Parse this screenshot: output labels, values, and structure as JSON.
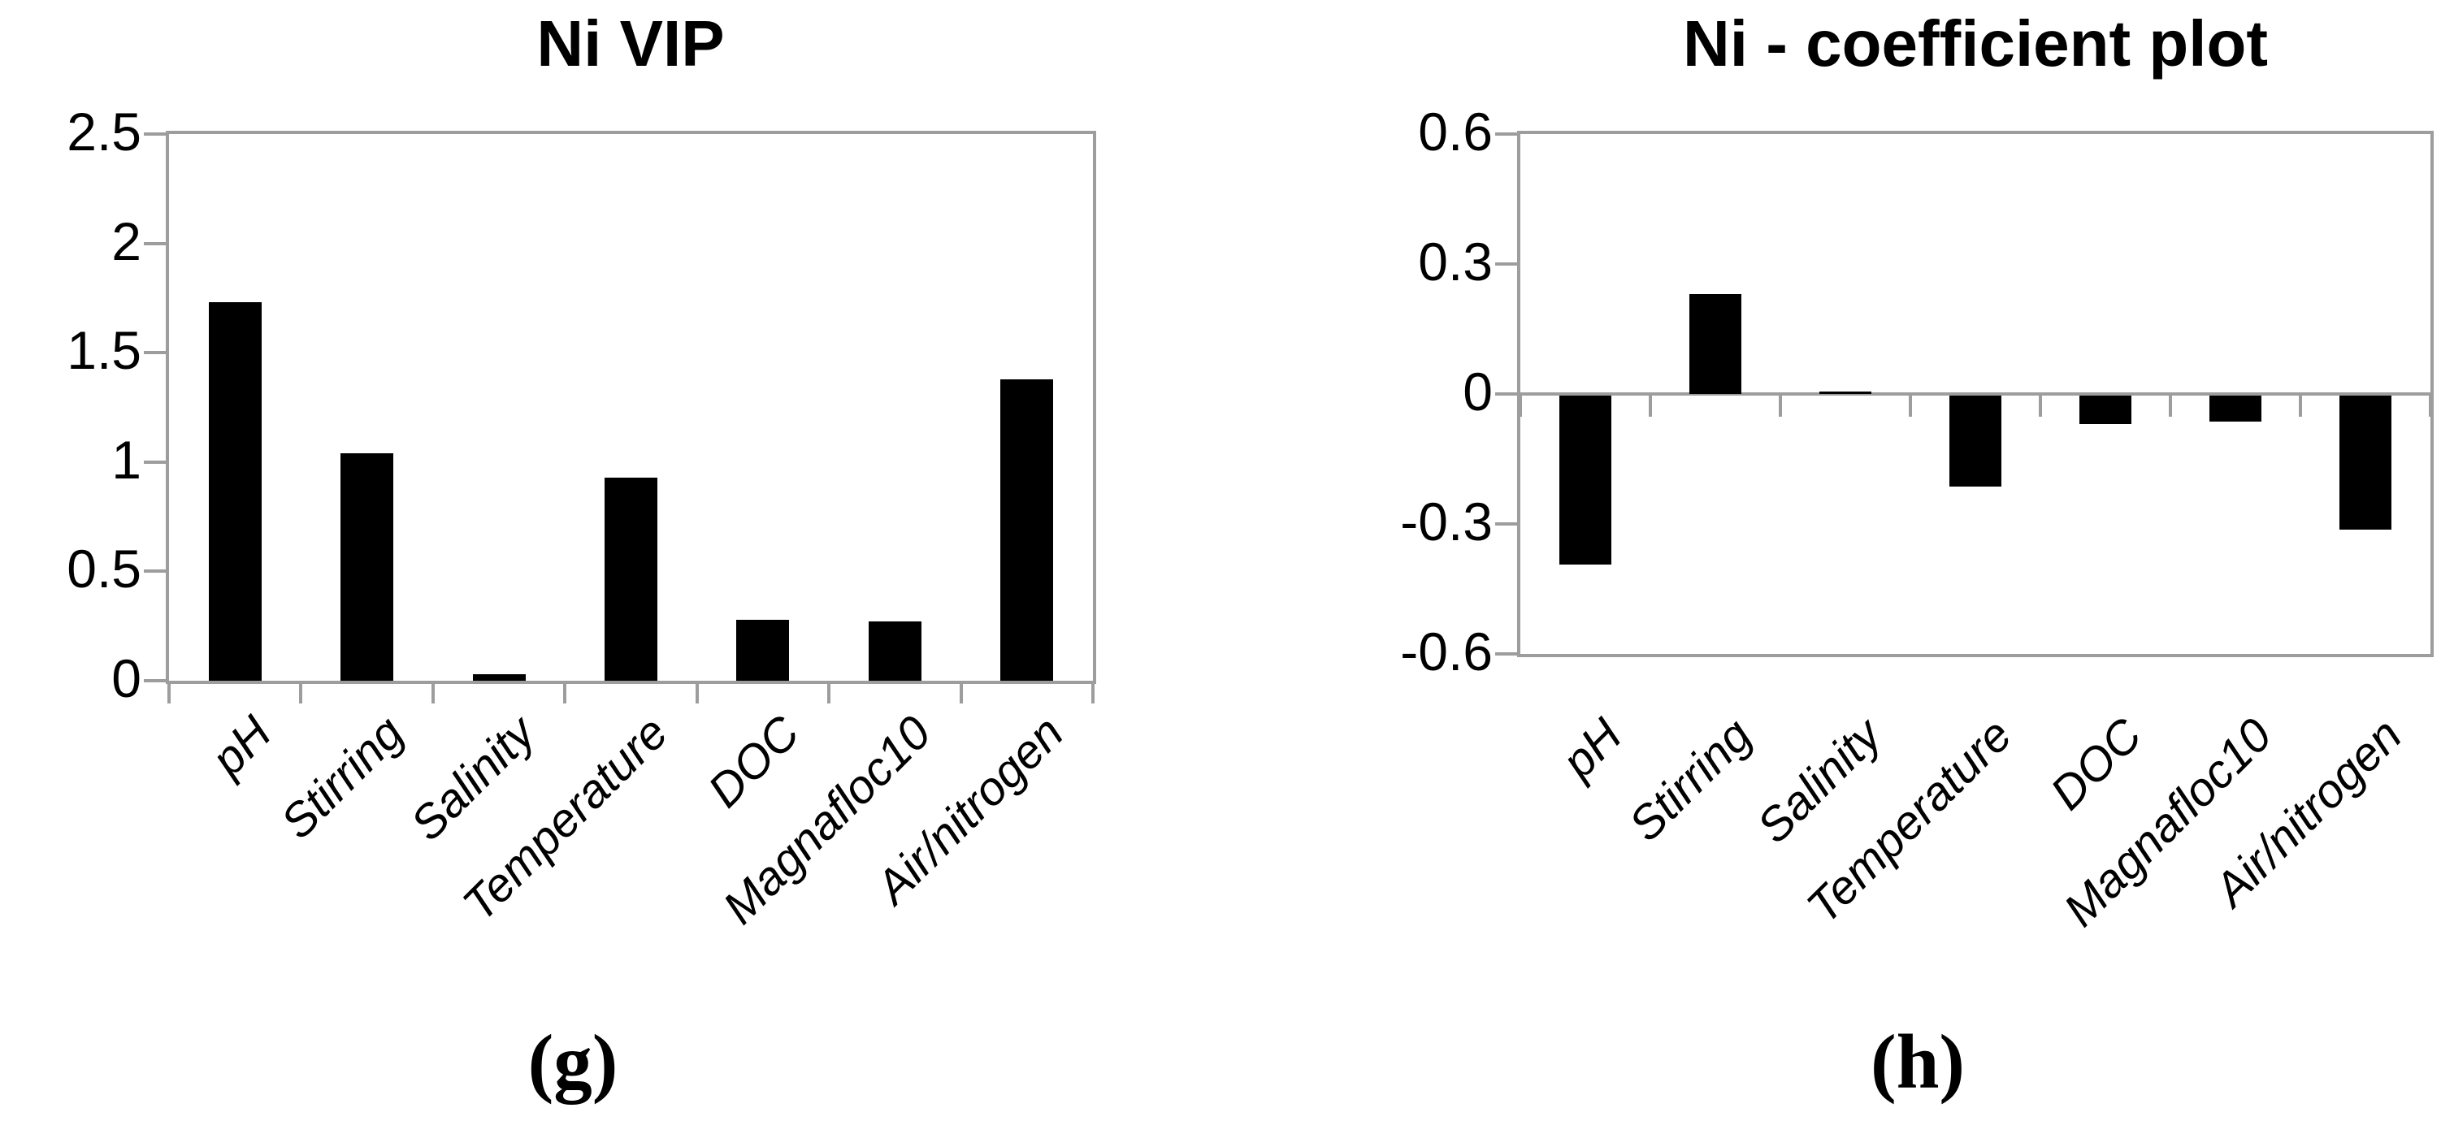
{
  "figure": {
    "background": "#ffffff",
    "text_color": "#000000"
  },
  "chart_data": [
    {
      "type": "bar",
      "title": "Ni VIP",
      "caption": "(g)",
      "categories": [
        "pH",
        "Stirring",
        "Salinity",
        "Temperature",
        "DOC",
        "Magnafloc10",
        "Air/nitrogen"
      ],
      "values": [
        1.73,
        1.04,
        0.03,
        0.93,
        0.28,
        0.27,
        1.38
      ],
      "ylim": [
        0,
        2.5
      ],
      "yticks": [
        0,
        0.5,
        1,
        1.5,
        2,
        2.5
      ],
      "ytick_labels": [
        "0",
        "0.5",
        "1",
        "1.5",
        "2",
        "2.5"
      ],
      "xlabel": "",
      "ylabel": "",
      "grid": false,
      "legend": null,
      "bar_color": "#000000",
      "axis_color": "#9d9d9d"
    },
    {
      "type": "bar",
      "title": "Ni - coefficient plot",
      "caption": "(h)",
      "categories": [
        "pH",
        "Stirring",
        "Salinity",
        "Temperature",
        "DOC",
        "Magnafloc10",
        "Air/nitrogen"
      ],
      "values": [
        -0.39,
        0.23,
        0.005,
        -0.21,
        -0.065,
        -0.06,
        -0.31
      ],
      "ylim": [
        -0.6,
        0.6
      ],
      "yticks": [
        0.6,
        0.3,
        0,
        -0.3,
        -0.6
      ],
      "ytick_labels": [
        "0.6",
        "0.3",
        "0",
        "-0.3",
        "-0.6"
      ],
      "xlabel": "",
      "ylabel": "",
      "grid": false,
      "legend": null,
      "bar_color": "#000000",
      "axis_color": "#9d9d9d"
    }
  ]
}
